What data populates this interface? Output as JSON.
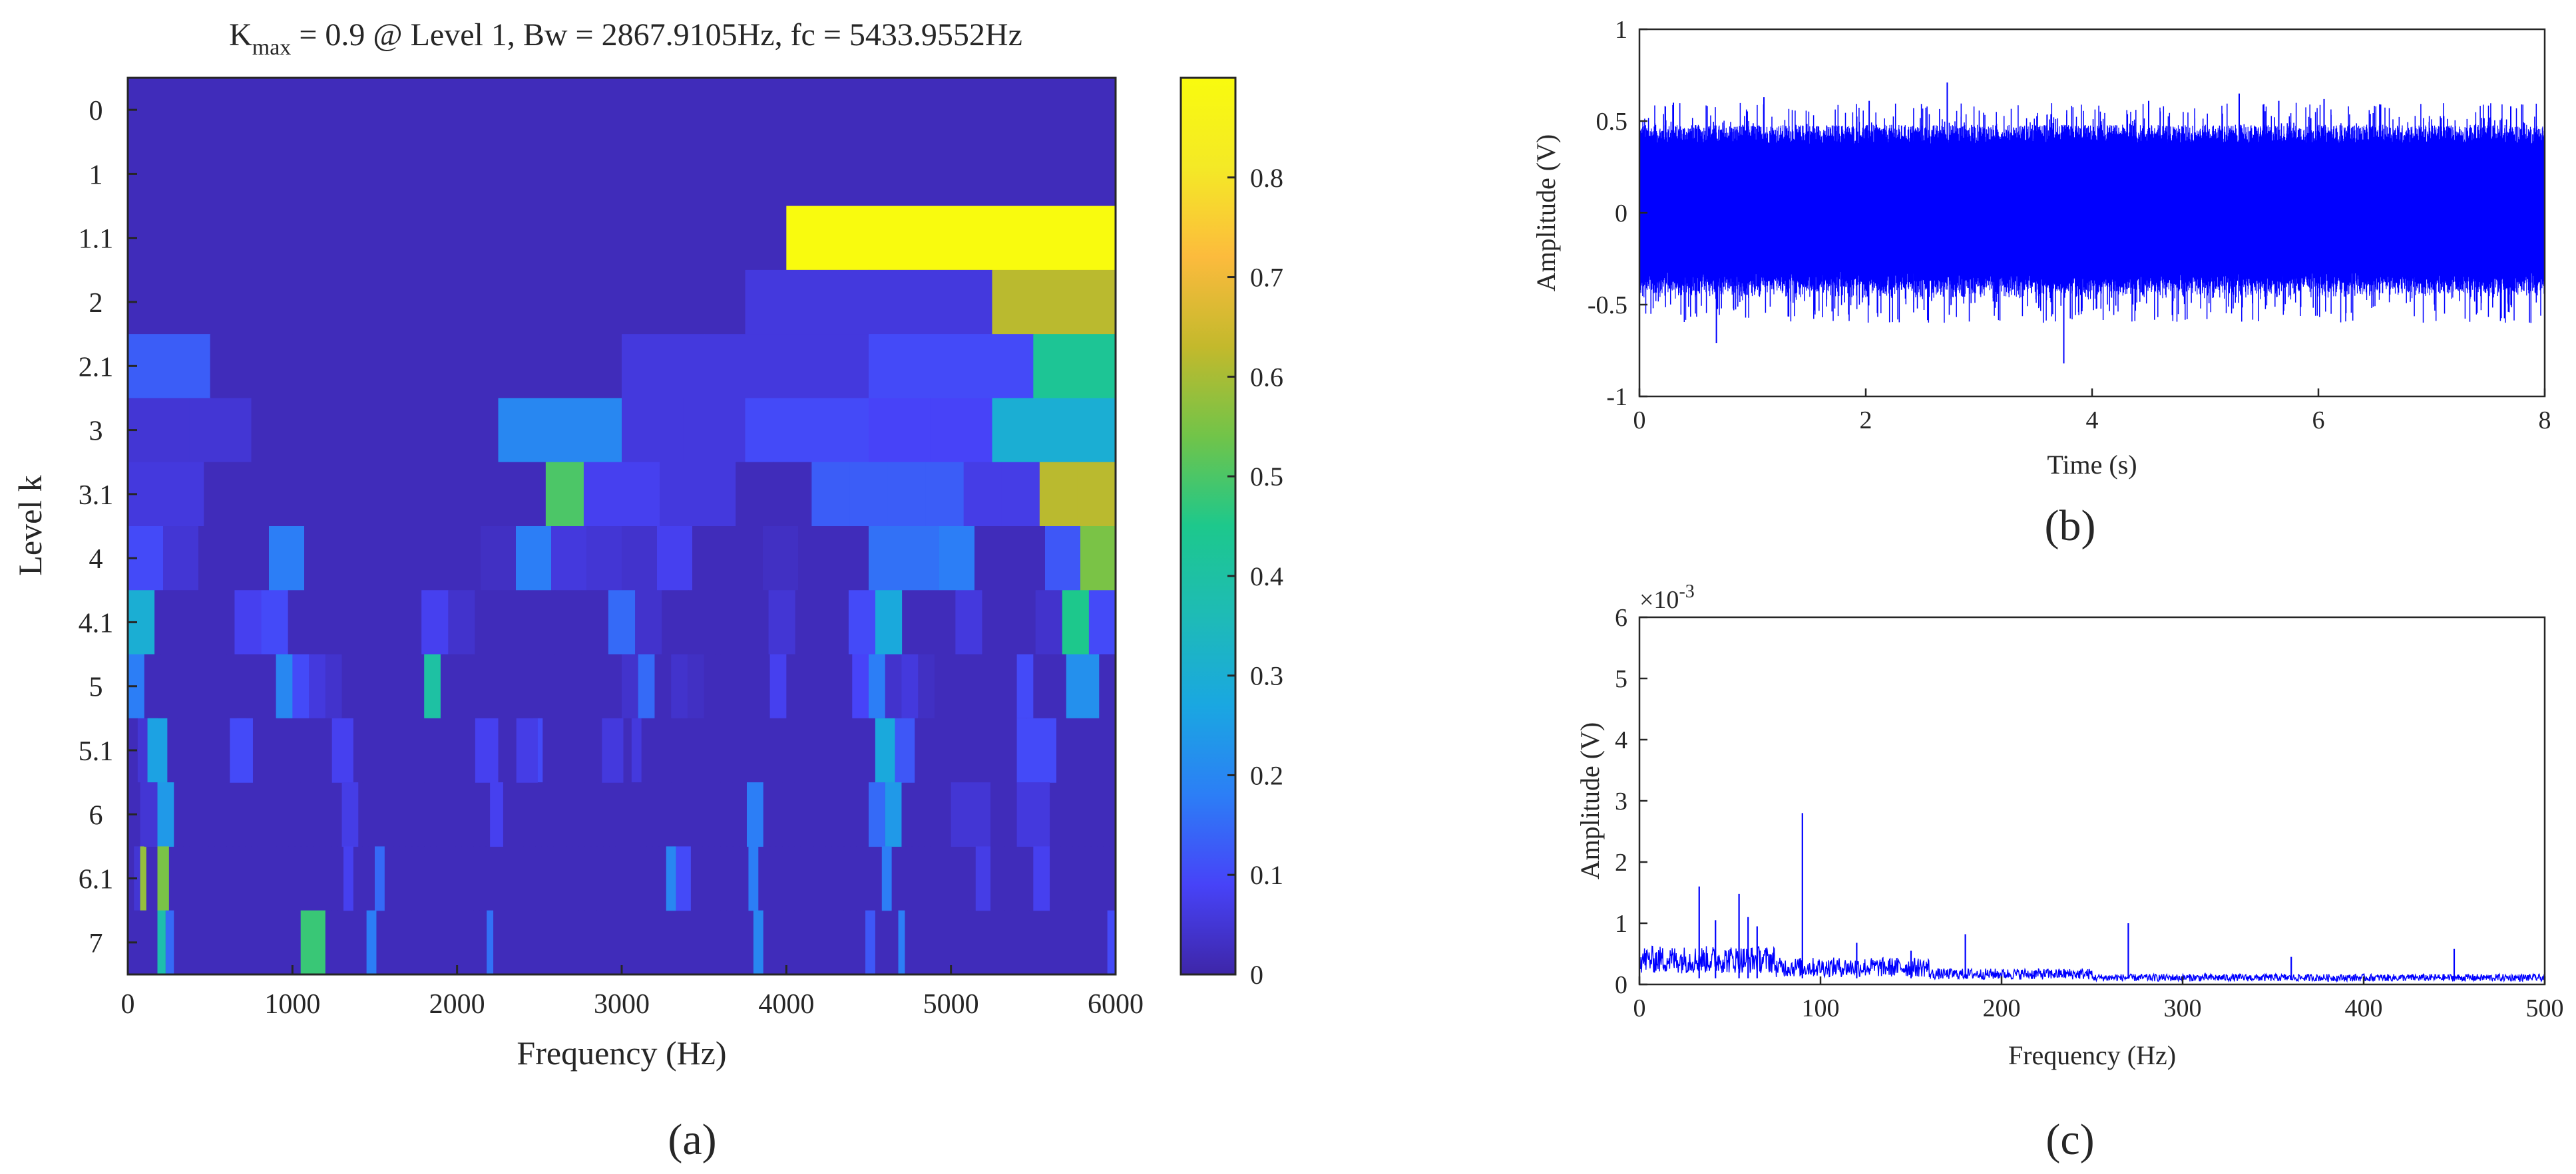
{
  "chart_data": [
    {
      "type": "heatmap",
      "panel_label": "(a)",
      "title": {
        "main": "K",
        "subscript": "max",
        "rest": " = 0.9 @ Level 1, Bw = 2867.9105Hz, fc = 5433.9552Hz"
      },
      "xlabel": "Frequency (Hz)",
      "ylabel": "Level k",
      "xlim": [
        0,
        6000
      ],
      "xticks": [
        "0",
        "1000",
        "2000",
        "3000",
        "4000",
        "5000",
        "6000"
      ],
      "levels": [
        "0",
        "1",
        "1.1",
        "2",
        "2.1",
        "3",
        "3.1",
        "4",
        "4.1",
        "5",
        "5.1",
        "6",
        "6.1",
        "7"
      ],
      "colorbar": {
        "range": [
          0,
          0.9
        ],
        "ticks": [
          "0",
          "0.1",
          "0.2",
          "0.3",
          "0.4",
          "0.5",
          "0.6",
          "0.7",
          "0.8"
        ],
        "colormap": "parula"
      },
      "rows": [
        [
          0.02
        ],
        [
          0.02,
          0.02
        ],
        [
          0.02,
          0.02,
          0.9
        ],
        [
          0.02,
          0.02,
          0.02,
          0.02,
          0.02,
          0.06,
          0.06,
          0.62
        ],
        [
          0.13,
          0.02,
          0.02,
          0.02,
          0.02,
          0.02,
          0.06,
          0.06,
          0.06,
          0.1,
          0.1,
          0.43
        ],
        [
          0.05,
          0.05,
          0.02,
          0.02,
          0.02,
          0.02,
          0.2,
          0.2,
          0.06,
          0.06,
          0.1,
          0.1,
          0.09,
          0.09,
          0.3,
          0.3
        ],
        [
          0.06,
          0.06,
          0.02,
          0.02,
          0.02,
          0.02,
          0.02,
          0.02,
          0.02,
          0.02,
          0.02,
          0.5,
          0.08,
          0.08,
          0.06,
          0.06,
          0.02,
          0.02,
          0.13,
          0.13,
          0.13,
          0.13,
          0.07,
          0.07,
          0.62,
          0.62
        ],
        [
          0.1,
          0.05,
          0.02,
          0.02,
          0.18,
          0.02,
          0.02,
          0.02,
          0.02,
          0.02,
          0.03,
          0.18,
          0.06,
          0.05,
          0.04,
          0.08,
          0.02,
          0.02,
          0.03,
          0.02,
          0.02,
          0.16,
          0.16,
          0.18,
          0.02,
          0.02,
          0.12,
          0.55
        ],
        [
          0.3,
          0.02,
          0.02,
          0.02,
          0.08,
          0.1,
          0.02,
          0.02,
          0.02,
          0.02,
          0.02,
          0.08,
          0.04,
          0.02,
          0.02,
          0.02,
          0.02,
          0.02,
          0.15,
          0.04,
          0.02,
          0.02,
          0.02,
          0.02,
          0.05,
          0.02,
          0.02,
          0.1,
          0.28,
          0.02,
          0.02,
          0.06,
          0.02,
          0.02,
          0.04,
          0.45,
          0.1
        ],
        [
          0.18,
          0.02,
          0.02,
          0.02,
          0.02,
          0.02,
          0.02,
          0.02,
          0.02,
          0.2,
          0.1,
          0.06,
          0.04,
          0.02,
          0.02,
          0.02,
          0.02,
          0.02,
          0.4,
          0.02,
          0.02,
          0.02,
          0.02,
          0.02,
          0.02,
          0.02,
          0.02,
          0.02,
          0.02,
          0.02,
          0.04,
          0.15,
          0.02,
          0.04,
          0.03,
          0.02,
          0.02,
          0.02,
          0.02,
          0.08,
          0.02,
          0.02,
          0.02,
          0.02,
          0.09,
          0.18,
          0.04,
          0.06,
          0.03,
          0.02,
          0.02,
          0.02,
          0.02,
          0.02,
          0.1,
          0.02,
          0.02,
          0.22,
          0.22,
          0.02
        ],
        [
          0.02,
          0.05,
          0.3,
          0.02,
          0.02,
          0.02,
          0.02,
          0.02,
          0.02,
          0.02,
          0.02,
          0.08,
          0.02,
          0.02,
          0.02,
          0.02,
          0.02,
          0.02,
          0.02,
          0.02,
          0.02,
          0.02,
          0.02,
          0.02,
          0.02,
          0.02,
          0.02,
          0.02,
          0.02,
          0.02,
          0.02,
          0.02,
          0.02,
          0.02,
          0.02,
          0.02,
          0.02,
          0.02,
          0.02,
          0.02,
          0.04,
          0.1,
          0.02,
          0.02,
          0.02,
          0.02,
          0.02,
          0.02,
          0.02,
          0.02,
          0.02,
          0.06,
          0.02,
          0.02,
          0.02,
          0.02,
          0.02,
          0.02,
          0.02,
          0.02,
          0.02,
          0.02,
          0.02,
          0.02,
          0.02,
          0.02,
          0.02,
          0.02,
          0.02,
          0.02,
          0.02,
          0.02,
          0.02,
          0.02,
          0.02,
          0.02,
          0.02,
          0.02,
          0.02,
          0.02,
          0.02,
          0.02,
          0.02,
          0.02,
          0.02,
          0.02,
          0.02,
          0.02,
          0.02,
          0.02,
          0.02,
          0.02,
          0.02,
          0.02,
          0.02,
          0.02,
          0.02,
          0.02,
          0.02,
          0.02
        ],
        [
          0.02,
          0.05,
          0.02,
          0.02,
          0.02,
          0.02,
          0.02,
          0.02,
          0.02,
          0.02,
          0.02,
          0.02,
          0.02,
          0.02,
          0.02,
          0.02,
          0.02,
          0.02,
          0.02,
          0.02,
          0.02,
          0.02,
          0.02,
          0.02,
          0.02,
          0.02,
          0.02,
          0.02,
          0.02,
          0.02,
          0.02,
          0.02,
          0.02,
          0.02,
          0.02,
          0.02,
          0.02,
          0.02,
          0.02,
          0.02,
          0.02,
          0.02,
          0.02,
          0.02,
          0.02,
          0.02,
          0.02,
          0.02,
          0.02,
          0.02,
          0.02,
          0.02,
          0.02,
          0.02,
          0.02,
          0.02,
          0.02,
          0.02,
          0.02,
          0.02,
          0.02,
          0.02,
          0.02,
          0.02,
          0.02,
          0.02,
          0.02,
          0.02,
          0.02,
          0.02,
          0.02,
          0.02,
          0.02,
          0.02,
          0.02,
          0.02,
          0.02,
          0.02,
          0.02,
          0.02
        ],
        [
          0.02,
          0.05,
          0.58,
          0.02,
          0.02,
          0.02,
          0.02,
          0.02,
          0.02,
          0.02,
          0.02,
          0.02,
          0.02,
          0.02,
          0.02,
          0.02,
          0.02,
          0.02,
          0.02,
          0.02,
          0.02,
          0.02,
          0.02,
          0.02,
          0.02,
          0.02,
          0.02,
          0.02,
          0.02,
          0.02,
          0.02,
          0.02,
          0.02,
          0.02,
          0.02,
          0.02,
          0.02,
          0.02,
          0.02,
          0.02,
          0.02,
          0.02,
          0.02,
          0.02,
          0.02,
          0.02,
          0.02,
          0.02,
          0.02,
          0.02,
          0.02,
          0.02,
          0.02,
          0.02,
          0.02,
          0.02,
          0.02,
          0.02,
          0.02,
          0.02,
          0.02,
          0.02,
          0.02,
          0.02,
          0.02,
          0.02,
          0.02,
          0.02,
          0.02,
          0.02,
          0.02,
          0.02,
          0.02,
          0.02,
          0.02,
          0.02,
          0.02,
          0.02,
          0.02,
          0.02,
          0.02,
          0.02,
          0.02,
          0.02,
          0.02,
          0.02,
          0.02,
          0.02,
          0.02,
          0.02,
          0.02,
          0.02,
          0.02,
          0.02,
          0.02,
          0.02,
          0.02,
          0.02,
          0.02,
          0.02,
          0.02,
          0.02,
          0.02,
          0.02,
          0.02,
          0.02,
          0.02,
          0.02,
          0.02,
          0.02,
          0.02,
          0.02,
          0.02,
          0.02,
          0.02,
          0.02,
          0.02,
          0.02,
          0.02,
          0.02,
          0.02,
          0.02,
          0.02,
          0.02,
          0.02,
          0.02,
          0.02,
          0.02,
          0.02,
          0.02,
          0.02,
          0.02,
          0.02,
          0.02,
          0.02,
          0.02,
          0.02,
          0.02,
          0.02,
          0.02,
          0.02,
          0.02,
          0.02,
          0.02,
          0.02,
          0.02,
          0.02,
          0.02,
          0.02,
          0.02,
          0.02,
          0.02,
          0.02,
          0.02,
          0.02,
          0.02,
          0.02,
          0.02,
          0.02,
          0.02
        ],
        [
          0.02,
          0.02,
          0.02,
          0.02,
          0.02,
          0.02,
          0.02,
          0.48,
          0.02,
          0.02,
          0.02,
          0.02,
          0.02,
          0.02,
          0.02,
          0.02,
          0.02,
          0.02,
          0.02,
          0.02,
          0.02,
          0.02,
          0.02,
          0.02,
          0.02,
          0.02,
          0.02,
          0.02,
          0.02,
          0.02,
          0.02,
          0.02,
          0.02,
          0.02,
          0.02,
          0.02,
          0.02,
          0.02,
          0.02,
          0.02
        ]
      ],
      "overrides": [
        {
          "level": "5.1",
          "f0": 120,
          "f1": 240,
          "v": 0.26
        },
        {
          "level": "5.1",
          "f0": 620,
          "f1": 760,
          "v": 0.1
        },
        {
          "level": "5.1",
          "f0": 1240,
          "f1": 1370,
          "v": 0.08
        },
        {
          "level": "5.1",
          "f0": 2110,
          "f1": 2250,
          "v": 0.08
        },
        {
          "level": "5.1",
          "f0": 2360,
          "f1": 2490,
          "v": 0.07
        },
        {
          "level": "5.1",
          "f0": 2880,
          "f1": 3010,
          "v": 0.06
        },
        {
          "level": "5.1",
          "f0": 4540,
          "f1": 4660,
          "v": 0.28
        },
        {
          "level": "5.1",
          "f0": 4660,
          "f1": 4780,
          "v": 0.12
        },
        {
          "level": "5.1",
          "f0": 5400,
          "f1": 5640,
          "v": 0.1
        },
        {
          "level": "6",
          "f0": 100,
          "f1": 180,
          "v": 0.05
        },
        {
          "level": "6",
          "f0": 180,
          "f1": 280,
          "v": 0.24
        },
        {
          "level": "6",
          "f0": 1300,
          "f1": 1400,
          "v": 0.07
        },
        {
          "level": "6",
          "f0": 2200,
          "f1": 2280,
          "v": 0.08
        },
        {
          "level": "6",
          "f0": 3760,
          "f1": 3860,
          "v": 0.18
        },
        {
          "level": "6",
          "f0": 4500,
          "f1": 4600,
          "v": 0.15
        },
        {
          "level": "6",
          "f0": 4600,
          "f1": 4700,
          "v": 0.24
        },
        {
          "level": "6",
          "f0": 5000,
          "f1": 5240,
          "v": 0.05
        },
        {
          "level": "6",
          "f0": 5400,
          "f1": 5600,
          "v": 0.06
        },
        {
          "level": "6.1",
          "f0": 180,
          "f1": 250,
          "v": 0.55
        },
        {
          "level": "6.1",
          "f0": 1310,
          "f1": 1370,
          "v": 0.08
        },
        {
          "level": "6.1",
          "f0": 1500,
          "f1": 1560,
          "v": 0.15
        },
        {
          "level": "6.1",
          "f0": 3270,
          "f1": 3330,
          "v": 0.2
        },
        {
          "level": "6.1",
          "f0": 3330,
          "f1": 3420,
          "v": 0.1
        },
        {
          "level": "6.1",
          "f0": 3770,
          "f1": 3830,
          "v": 0.18
        },
        {
          "level": "6.1",
          "f0": 4580,
          "f1": 4640,
          "v": 0.18
        },
        {
          "level": "6.1",
          "f0": 5150,
          "f1": 5240,
          "v": 0.07
        },
        {
          "level": "6.1",
          "f0": 5500,
          "f1": 5600,
          "v": 0.08
        },
        {
          "level": "7",
          "f0": 180,
          "f1": 230,
          "v": 0.38
        },
        {
          "level": "7",
          "f0": 230,
          "f1": 280,
          "v": 0.15
        },
        {
          "level": "7",
          "f0": 1450,
          "f1": 1510,
          "v": 0.18
        },
        {
          "level": "7",
          "f0": 2180,
          "f1": 2220,
          "v": 0.16
        },
        {
          "level": "7",
          "f0": 3800,
          "f1": 3860,
          "v": 0.2
        },
        {
          "level": "7",
          "f0": 4480,
          "f1": 4540,
          "v": 0.12
        },
        {
          "level": "7",
          "f0": 4680,
          "f1": 4720,
          "v": 0.18
        },
        {
          "level": "7",
          "f0": 5950,
          "f1": 6000,
          "v": 0.1
        }
      ]
    },
    {
      "type": "line",
      "panel_label": "(b)",
      "title": "",
      "xlabel": "Time (s)",
      "ylabel": "Amplitude (V)",
      "xlim": [
        0,
        8
      ],
      "ylim": [
        -1,
        1
      ],
      "xticks": [
        "0",
        "2",
        "4",
        "6",
        "8"
      ],
      "yticks": [
        "-1",
        "-0.5",
        "0",
        "0.5",
        "1"
      ],
      "color": "#0000ff",
      "envelope": {
        "typical_peak": 0.48,
        "max": 0.71,
        "min": -0.82
      },
      "peaks": [
        {
          "x": 0.3,
          "y": 0.6
        },
        {
          "x": 0.68,
          "y": -0.71
        },
        {
          "x": 1.1,
          "y": 0.63
        },
        {
          "x": 2.03,
          "y": 0.61
        },
        {
          "x": 2.72,
          "y": 0.71
        },
        {
          "x": 3.75,
          "y": -0.82
        },
        {
          "x": 4.5,
          "y": 0.61
        },
        {
          "x": 5.3,
          "y": 0.65
        },
        {
          "x": 5.65,
          "y": 0.61
        },
        {
          "x": 6.05,
          "y": 0.62
        },
        {
          "x": 6.55,
          "y": 0.59
        },
        {
          "x": 7.7,
          "y": 0.58
        }
      ]
    },
    {
      "type": "line",
      "panel_label": "(c)",
      "title": "",
      "xlabel": "Frequency (Hz)",
      "ylabel": "Amplitude (V)",
      "xlim": [
        0,
        500
      ],
      "ylim": [
        0,
        6
      ],
      "xticks": [
        "0",
        "100",
        "200",
        "300",
        "400",
        "500"
      ],
      "yticks": [
        "0",
        "1",
        "2",
        "3",
        "4",
        "5",
        "6"
      ],
      "exponent_label": "×10",
      "exponent_power": "-3",
      "color": "#0000ff",
      "peaks": [
        {
          "x": 33,
          "y": 1.6
        },
        {
          "x": 42,
          "y": 1.05
        },
        {
          "x": 55,
          "y": 1.48
        },
        {
          "x": 60,
          "y": 1.1
        },
        {
          "x": 65,
          "y": 0.95
        },
        {
          "x": 90,
          "y": 2.8
        },
        {
          "x": 120,
          "y": 0.68
        },
        {
          "x": 150,
          "y": 0.55
        },
        {
          "x": 180,
          "y": 0.82
        },
        {
          "x": 270,
          "y": 1.0
        },
        {
          "x": 360,
          "y": 0.45
        },
        {
          "x": 450,
          "y": 0.58
        }
      ]
    }
  ]
}
